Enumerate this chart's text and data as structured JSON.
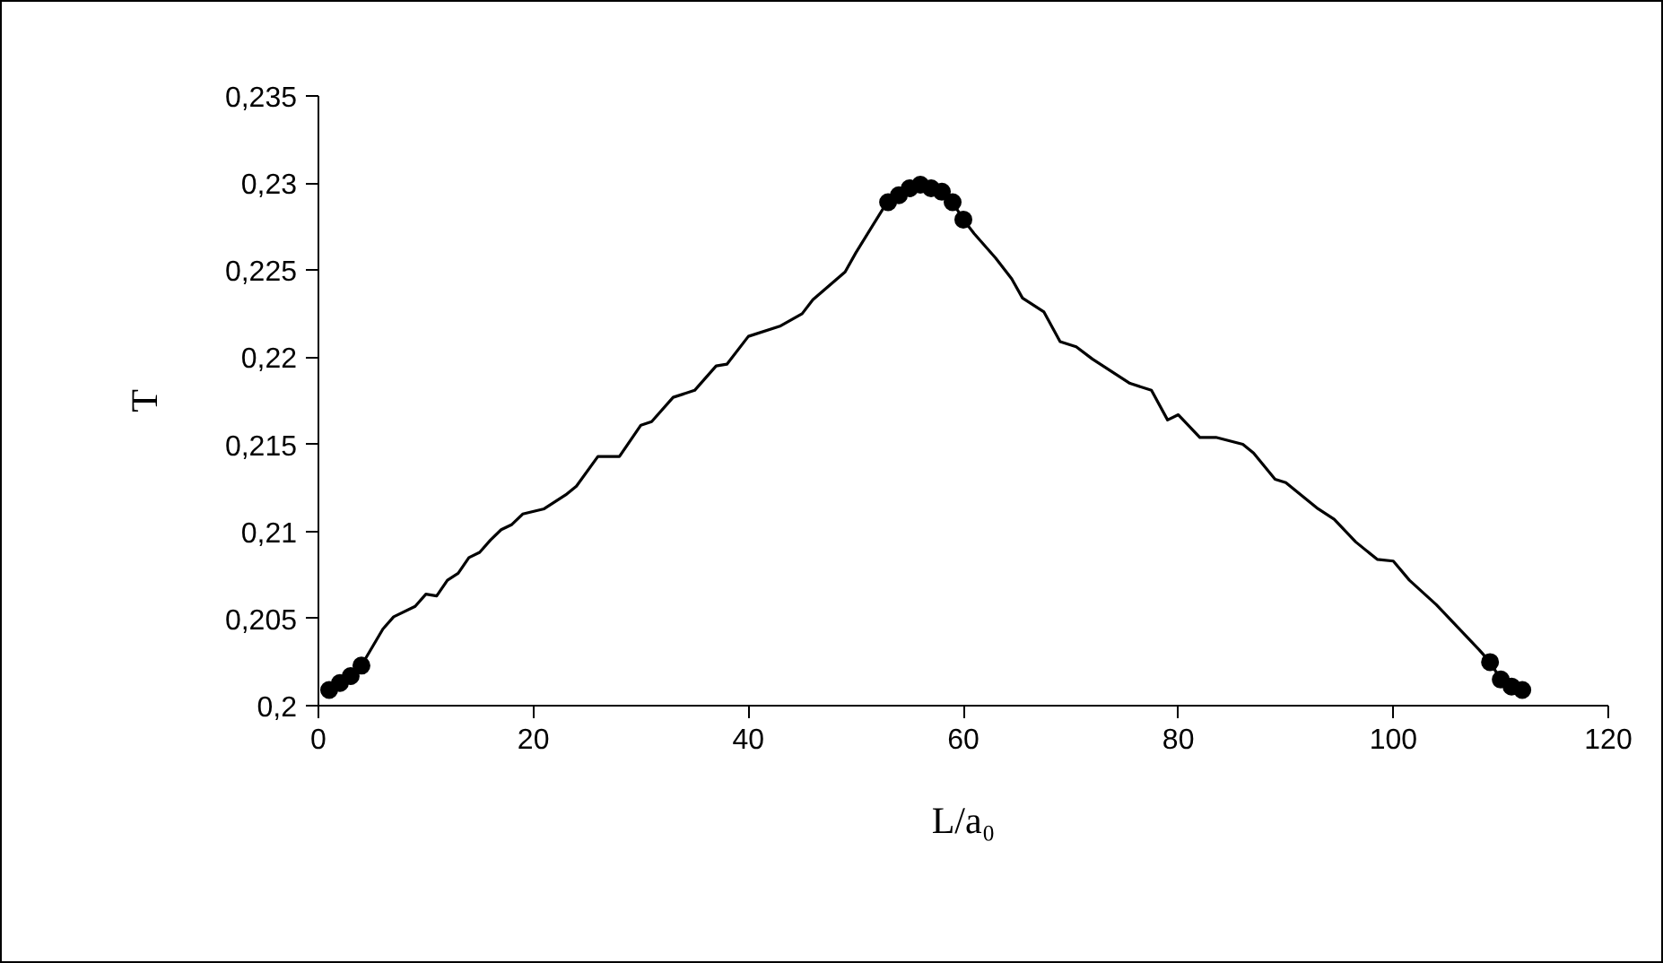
{
  "chart_data": {
    "type": "line",
    "xlabel": "L/a₀",
    "ylabel": "T",
    "xlim": [
      0,
      120
    ],
    "xticks": [
      0,
      20,
      40,
      60,
      80,
      100,
      120
    ],
    "ylim": [
      0.2,
      0.235
    ],
    "yticks": [
      {
        "value": 0.2,
        "label": "0,2"
      },
      {
        "value": 0.205,
        "label": "0,205"
      },
      {
        "value": 0.21,
        "label": "0,21"
      },
      {
        "value": 0.215,
        "label": "0,215"
      },
      {
        "value": 0.22,
        "label": "0,22"
      },
      {
        "value": 0.225,
        "label": "0,225"
      },
      {
        "value": 0.23,
        "label": "0,23"
      },
      {
        "value": 0.235,
        "label": "0,235"
      }
    ],
    "grid": false,
    "series": [
      {
        "color": "#000000",
        "line_style": "solid",
        "x": [
          1,
          2,
          3,
          4,
          6,
          7,
          9,
          10,
          11,
          12,
          13,
          14,
          15,
          16,
          17,
          18,
          19,
          21,
          23,
          24,
          26,
          28,
          30,
          31,
          33,
          35,
          37,
          38,
          40,
          43,
          45,
          46,
          49,
          50,
          52.5,
          53,
          54,
          55,
          56,
          57,
          58,
          59,
          60,
          61,
          63,
          64.5,
          65.5,
          67.5,
          69,
          70.5,
          72,
          75.5,
          77.5,
          79,
          80,
          82,
          83.5,
          86,
          87,
          89,
          90,
          93,
          94.5,
          96.5,
          98.5,
          100,
          101.5,
          104,
          106,
          108,
          109,
          110,
          111,
          112
        ],
        "values": [
          0.2009,
          0.2013,
          0.2017,
          0.2023,
          0.2044,
          0.2051,
          0.2057,
          0.2064,
          0.2063,
          0.2072,
          0.2076,
          0.2085,
          0.2088,
          0.2095,
          0.2101,
          0.2104,
          0.211,
          0.2113,
          0.2121,
          0.2126,
          0.2143,
          0.2143,
          0.2161,
          0.2163,
          0.2177,
          0.2181,
          0.2195,
          0.2196,
          0.2212,
          0.2218,
          0.2225,
          0.2233,
          0.2249,
          0.226,
          0.2285,
          0.2289,
          0.2293,
          0.2297,
          0.2299,
          0.2297,
          0.2295,
          0.2289,
          0.2279,
          0.2271,
          0.2257,
          0.2245,
          0.2234,
          0.2226,
          0.2209,
          0.2206,
          0.2199,
          0.2185,
          0.2181,
          0.2164,
          0.2167,
          0.2154,
          0.2154,
          0.215,
          0.2145,
          0.213,
          0.2128,
          0.2113,
          0.2107,
          0.2094,
          0.2084,
          0.2083,
          0.2072,
          0.2058,
          0.2045,
          0.2032,
          0.2025,
          0.2015,
          0.2011,
          0.2009
        ]
      },
      {
        "type": "scatter",
        "color": "#000000",
        "marker": "circle",
        "x": [
          1,
          2,
          3,
          4,
          53,
          54,
          55,
          56,
          57,
          58,
          59,
          60,
          109,
          110,
          111,
          112
        ],
        "values": [
          0.2009,
          0.2013,
          0.2017,
          0.2023,
          0.2289,
          0.2293,
          0.2297,
          0.2299,
          0.2297,
          0.2295,
          0.2289,
          0.2279,
          0.2025,
          0.2015,
          0.2011,
          0.2009
        ]
      }
    ]
  }
}
